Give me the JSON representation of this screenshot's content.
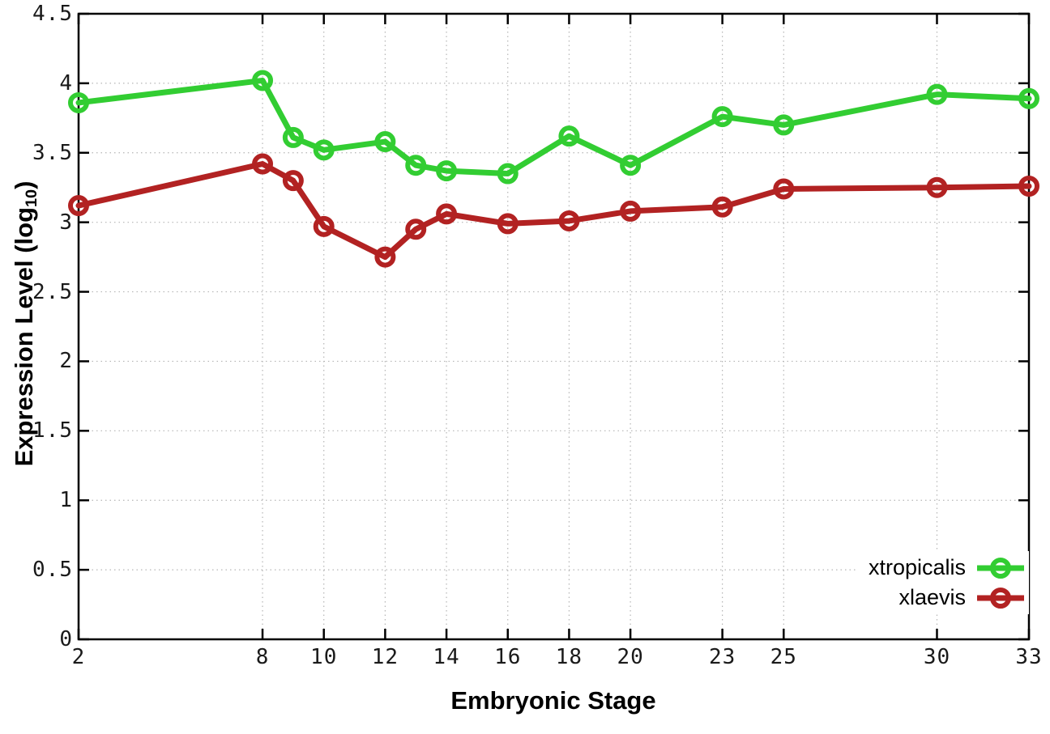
{
  "chart_data": {
    "type": "line",
    "title": "",
    "xlabel": "Embryonic Stage",
    "ylabel": "Expression Level (log10)",
    "ylabel_parts": {
      "main": "Expression Level (log",
      "sub": "10",
      "close": ")"
    },
    "x": [
      2,
      8,
      9,
      10,
      12,
      13,
      14,
      16,
      18,
      20,
      23,
      25,
      30,
      33
    ],
    "series": [
      {
        "name": "xtropicalis",
        "color": "#32CD32",
        "values": [
          3.86,
          4.02,
          3.61,
          3.52,
          3.58,
          3.41,
          3.37,
          3.35,
          3.62,
          3.41,
          3.76,
          3.7,
          3.92,
          3.89
        ]
      },
      {
        "name": "xlaevis",
        "color": "#B22222",
        "values": [
          3.12,
          3.42,
          3.3,
          2.97,
          2.75,
          2.95,
          3.06,
          2.99,
          3.01,
          3.08,
          3.11,
          3.24,
          3.25,
          3.26
        ]
      }
    ],
    "xlim": [
      2,
      33
    ],
    "ylim": [
      0,
      4.5
    ],
    "x_ticks": [
      "2",
      "8",
      "10",
      "12",
      "14",
      "16",
      "18",
      "20",
      "23",
      "25",
      "30",
      "33"
    ],
    "y_ticks": [
      "0",
      "0.5",
      "1",
      "1.5",
      "2",
      "2.5",
      "3",
      "3.5",
      "4",
      "4.5"
    ],
    "grid": true,
    "legend_position": "bottom-right",
    "style": {
      "grid_color": "#b5b5b5",
      "axis_color": "#000000",
      "marker": "open-circle",
      "line_width": 7,
      "marker_radius": 10,
      "marker_stroke": 6
    }
  }
}
